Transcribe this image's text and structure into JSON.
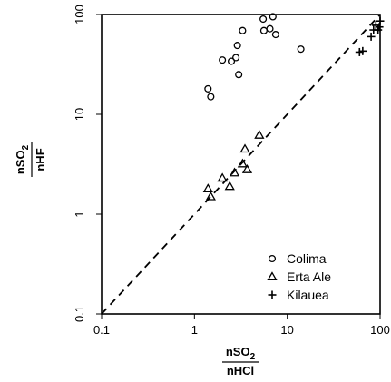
{
  "chart_data": {
    "type": "scatter",
    "xscale": "log",
    "yscale": "log",
    "xlim": [
      0.1,
      100
    ],
    "ylim": [
      0.1,
      100
    ],
    "xticks": [
      0.1,
      1,
      10,
      100
    ],
    "xtick_labels": [
      "0.1",
      "1",
      "10",
      "100"
    ],
    "yticks": [
      0.1,
      1,
      10,
      100
    ],
    "ytick_labels": [
      "0.1",
      "1",
      "10",
      "100"
    ],
    "xlabel": {
      "numerator": "nSO",
      "numerator_sub": "2",
      "denominator": "nHCl"
    },
    "ylabel": {
      "numerator": "nSO",
      "numerator_sub": "2",
      "denominator": "nHF"
    },
    "grid": false,
    "legend_position": "bottom-right",
    "reference_line": {
      "style": "dashed",
      "description": "1:1",
      "x": [
        0.1,
        100
      ],
      "y": [
        0.1,
        100
      ]
    },
    "series": [
      {
        "name": "Colima",
        "marker": "circle",
        "points": [
          [
            1.4,
            18
          ],
          [
            1.5,
            15
          ],
          [
            2.0,
            35
          ],
          [
            2.5,
            34
          ],
          [
            2.8,
            37
          ],
          [
            2.9,
            49
          ],
          [
            3.0,
            25
          ],
          [
            3.3,
            69
          ],
          [
            5.5,
            90
          ],
          [
            5.6,
            69
          ],
          [
            6.5,
            72
          ],
          [
            7.0,
            95
          ],
          [
            7.5,
            63
          ],
          [
            14,
            45
          ]
        ]
      },
      {
        "name": "Erta Ale",
        "marker": "triangle",
        "points": [
          [
            1.4,
            1.8
          ],
          [
            1.5,
            1.5
          ],
          [
            2.0,
            2.3
          ],
          [
            2.4,
            1.9
          ],
          [
            2.7,
            2.6
          ],
          [
            3.3,
            3.2
          ],
          [
            3.5,
            4.5
          ],
          [
            3.7,
            2.8
          ],
          [
            5.0,
            6.2
          ]
        ]
      },
      {
        "name": "Kilauea",
        "marker": "plus",
        "points": [
          [
            60,
            42
          ],
          [
            65,
            43
          ],
          [
            80,
            60
          ],
          [
            85,
            70
          ],
          [
            90,
            78
          ],
          [
            95,
            70
          ],
          [
            100,
            86
          ],
          [
            98,
            75
          ]
        ]
      }
    ]
  }
}
